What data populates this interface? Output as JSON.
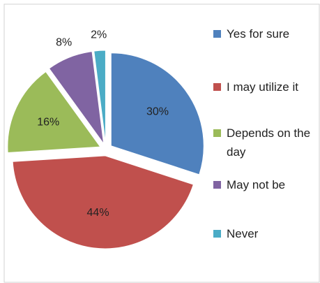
{
  "chart_data": {
    "type": "pie",
    "categories": [
      "Yes for sure",
      "I may utilize it",
      "Depends on the day",
      "May not be",
      "Never"
    ],
    "values": [
      30,
      44,
      16,
      8,
      2
    ],
    "value_labels": [
      "30%",
      "44%",
      "16%",
      "8%",
      "2%"
    ],
    "colors": [
      "#4f81bd",
      "#c0504d",
      "#9bbb59",
      "#8064a2",
      "#4bacc6"
    ],
    "legend": "right"
  }
}
